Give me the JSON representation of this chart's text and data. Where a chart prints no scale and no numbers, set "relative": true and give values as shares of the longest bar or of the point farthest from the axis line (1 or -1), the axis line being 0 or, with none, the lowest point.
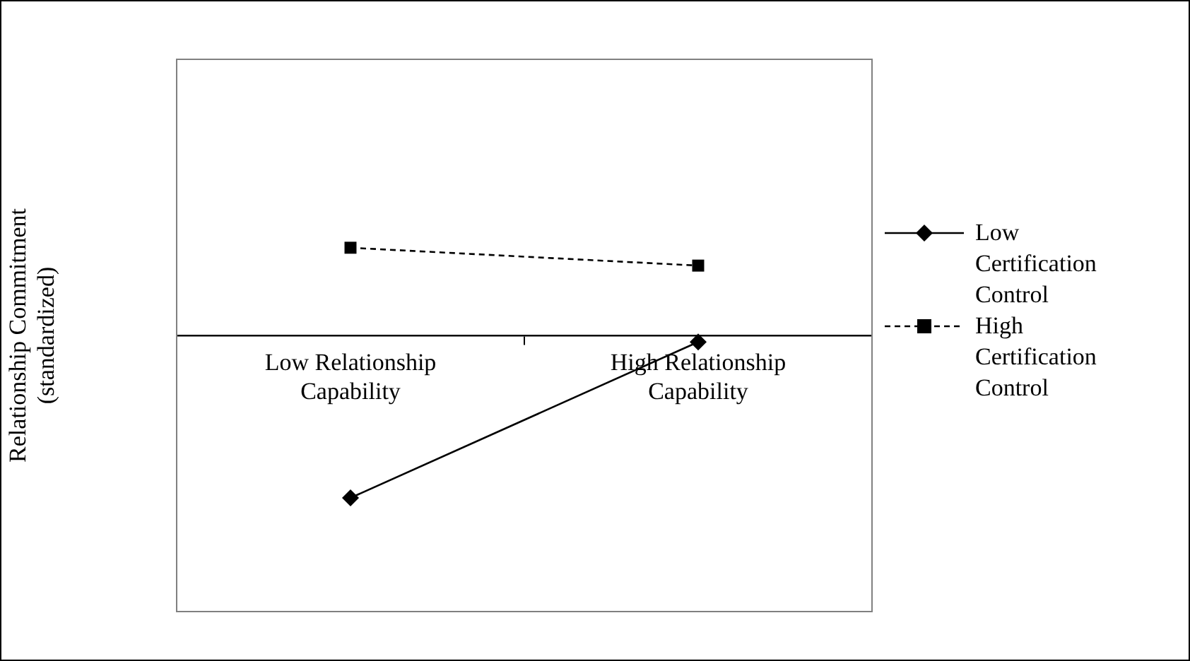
{
  "chart_data": {
    "type": "line",
    "relative": true,
    "ylabel": "Relationship Commitment (standardized)",
    "categories": [
      "Low Relationship Capability",
      "High Relationship Capability"
    ],
    "legend": "right",
    "grid": false,
    "series": [
      {
        "name": "Low Certification Control",
        "color": "#000000",
        "values": [
          -1,
          -0.04
        ],
        "marker": "diamond",
        "line_style": "solid"
      },
      {
        "name": "High Certification Control",
        "color": "#000000",
        "values": [
          0.54,
          0.43
        ],
        "marker": "square",
        "line_style": "dashed"
      }
    ]
  }
}
